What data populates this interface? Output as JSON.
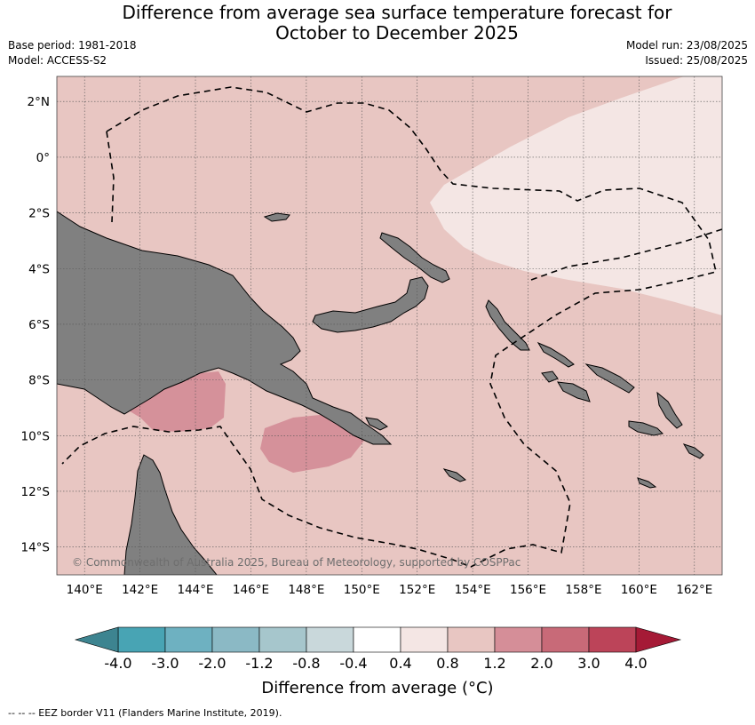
{
  "header": {
    "title_line1": "Difference from average sea surface temperature forecast for",
    "title_line2": "October to December 2025",
    "base_period": "Base period: 1981-2018",
    "model": "Model: ACCESS-S2",
    "model_run": "Model run: 23/08/2025",
    "issued": "Issued: 25/08/2025"
  },
  "map": {
    "lon_ticks": [
      "140°E",
      "142°E",
      "144°E",
      "146°E",
      "148°E",
      "150°E",
      "152°E",
      "154°E",
      "156°E",
      "158°E",
      "160°E",
      "162°E"
    ],
    "lat_ticks": [
      "2°N",
      "0°",
      "2°S",
      "4°S",
      "6°S",
      "8°S",
      "10°S",
      "12°S",
      "14°S"
    ],
    "copyright": "© Commonwealth of Australia 2025, Bureau of Meteorology, supported by COSPPac",
    "colors": {
      "ocean_base": "#e8c6c2",
      "ocean_low": "#f4e6e4",
      "ocean_high": "#d5919a",
      "land": "#808080",
      "eez": "#000000",
      "grid": "#555555"
    }
  },
  "legend": {
    "title": "Difference from average (°C)",
    "tick_labels": [
      "-4.0",
      "-3.0",
      "-2.0",
      "-1.2",
      "-0.8",
      "-0.4",
      "0.4",
      "0.8",
      "1.2",
      "2.0",
      "3.0",
      "4.0"
    ],
    "low_extend_color": "#3d8490",
    "high_extend_color": "#a51a36",
    "bins": [
      {
        "color": "#48a4b4"
      },
      {
        "color": "#6eb1c1"
      },
      {
        "color": "#8bb9c5"
      },
      {
        "color": "#a6c6cc"
      },
      {
        "color": "#c9d8db"
      },
      {
        "color": "#ffffff"
      },
      {
        "color": "#f4e6e4"
      },
      {
        "color": "#e8c6c2"
      },
      {
        "color": "#d58e98"
      },
      {
        "color": "#c86a78"
      },
      {
        "color": "#bc4459"
      }
    ]
  },
  "footer": {
    "eez_note": "--  --  -- EEZ border V11 (Flanders Marine Institute, 2019)."
  }
}
